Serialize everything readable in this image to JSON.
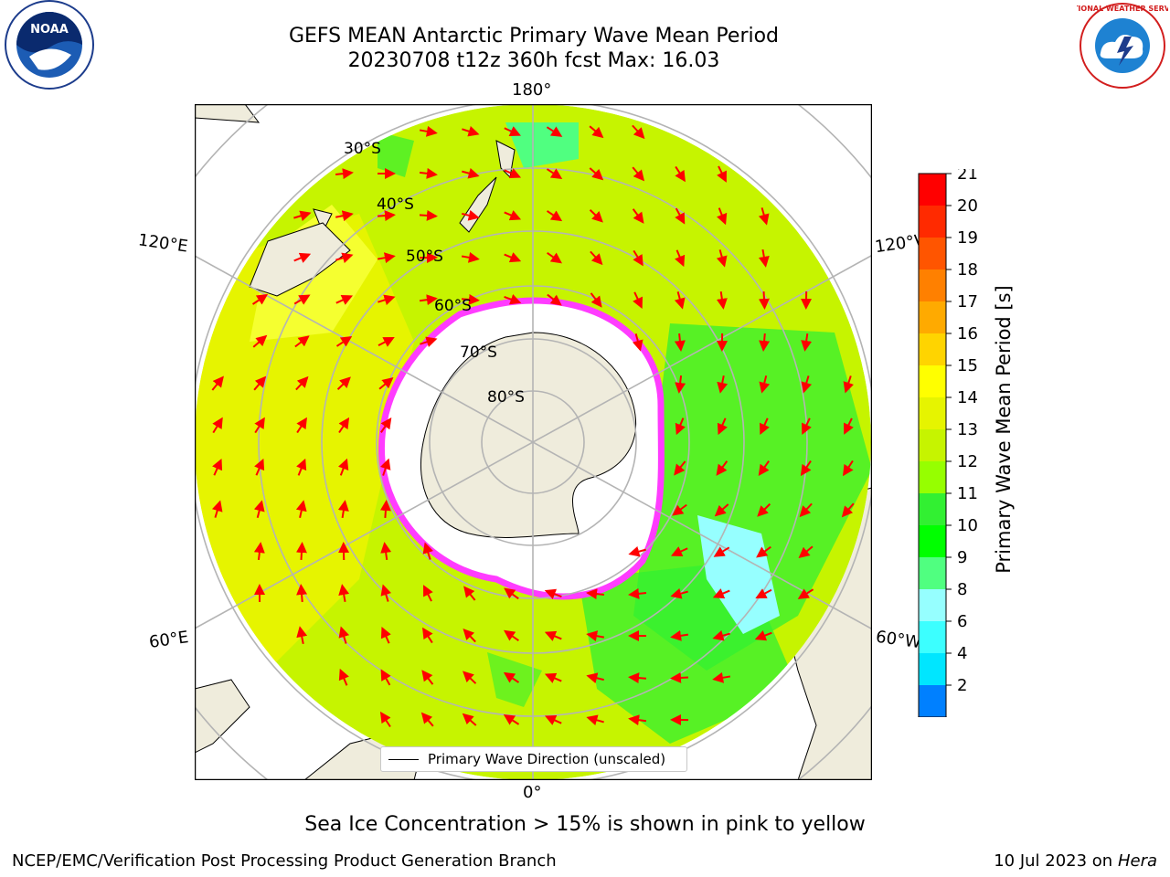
{
  "header": {
    "title_line1": "GEFS MEAN Antarctic Primary Wave Mean Period",
    "title_line2": "20230708 t12z 360h fcst   Max: 16.03"
  },
  "map": {
    "lon_labels": {
      "top": "180°",
      "upper_left": "120°E",
      "upper_right": "120°W",
      "lower_left": "60°E",
      "lower_right": "60°W",
      "bottom": "0°"
    },
    "lat_labels": [
      "30°S",
      "40°S",
      "50°S",
      "60°S",
      "70°S",
      "80°S"
    ],
    "colors": {
      "land": "#efecdc",
      "ocean_yellow": "#e6f400",
      "ocean_lime": "#c6f400",
      "ocean_green": "#32f032",
      "ocean_lightgreen": "#50ff80",
      "ocean_cyan": "#96ffff",
      "ice_edge": "#ff3cff",
      "arrow": "#ff0000",
      "gridline": "#b4b4b4"
    },
    "legend": {
      "line_label": "Primary Wave Direction (unscaled)"
    }
  },
  "colorbar": {
    "label": "Primary Wave Mean Period [s]",
    "ticks": [
      "21",
      "20",
      "19",
      "18",
      "17",
      "16",
      "15",
      "14",
      "13",
      "12",
      "11",
      "10",
      "9",
      "8",
      "6",
      "4",
      "2"
    ],
    "colors": [
      "#ff0000",
      "#ff2a00",
      "#ff5500",
      "#ff8000",
      "#ffaa00",
      "#ffd400",
      "#ffff00",
      "#e6f400",
      "#c6f400",
      "#96ff00",
      "#32f032",
      "#00ff00",
      "#50ff80",
      "#96ffff",
      "#3cffff",
      "#00e6ff",
      "#0080ff",
      "#0000ff"
    ]
  },
  "footer": {
    "ice_note": "Sea Ice Concentration > 15% is shown in pink to yellow",
    "credit_left": "NCEP/EMC/Verification Post Processing Product Generation Branch",
    "credit_date": "10 Jul 2023 on ",
    "credit_host": "Hera"
  },
  "logos": {
    "noaa_text": "NOAA",
    "nws_text": "NATIONAL WEATHER SERVICE"
  }
}
